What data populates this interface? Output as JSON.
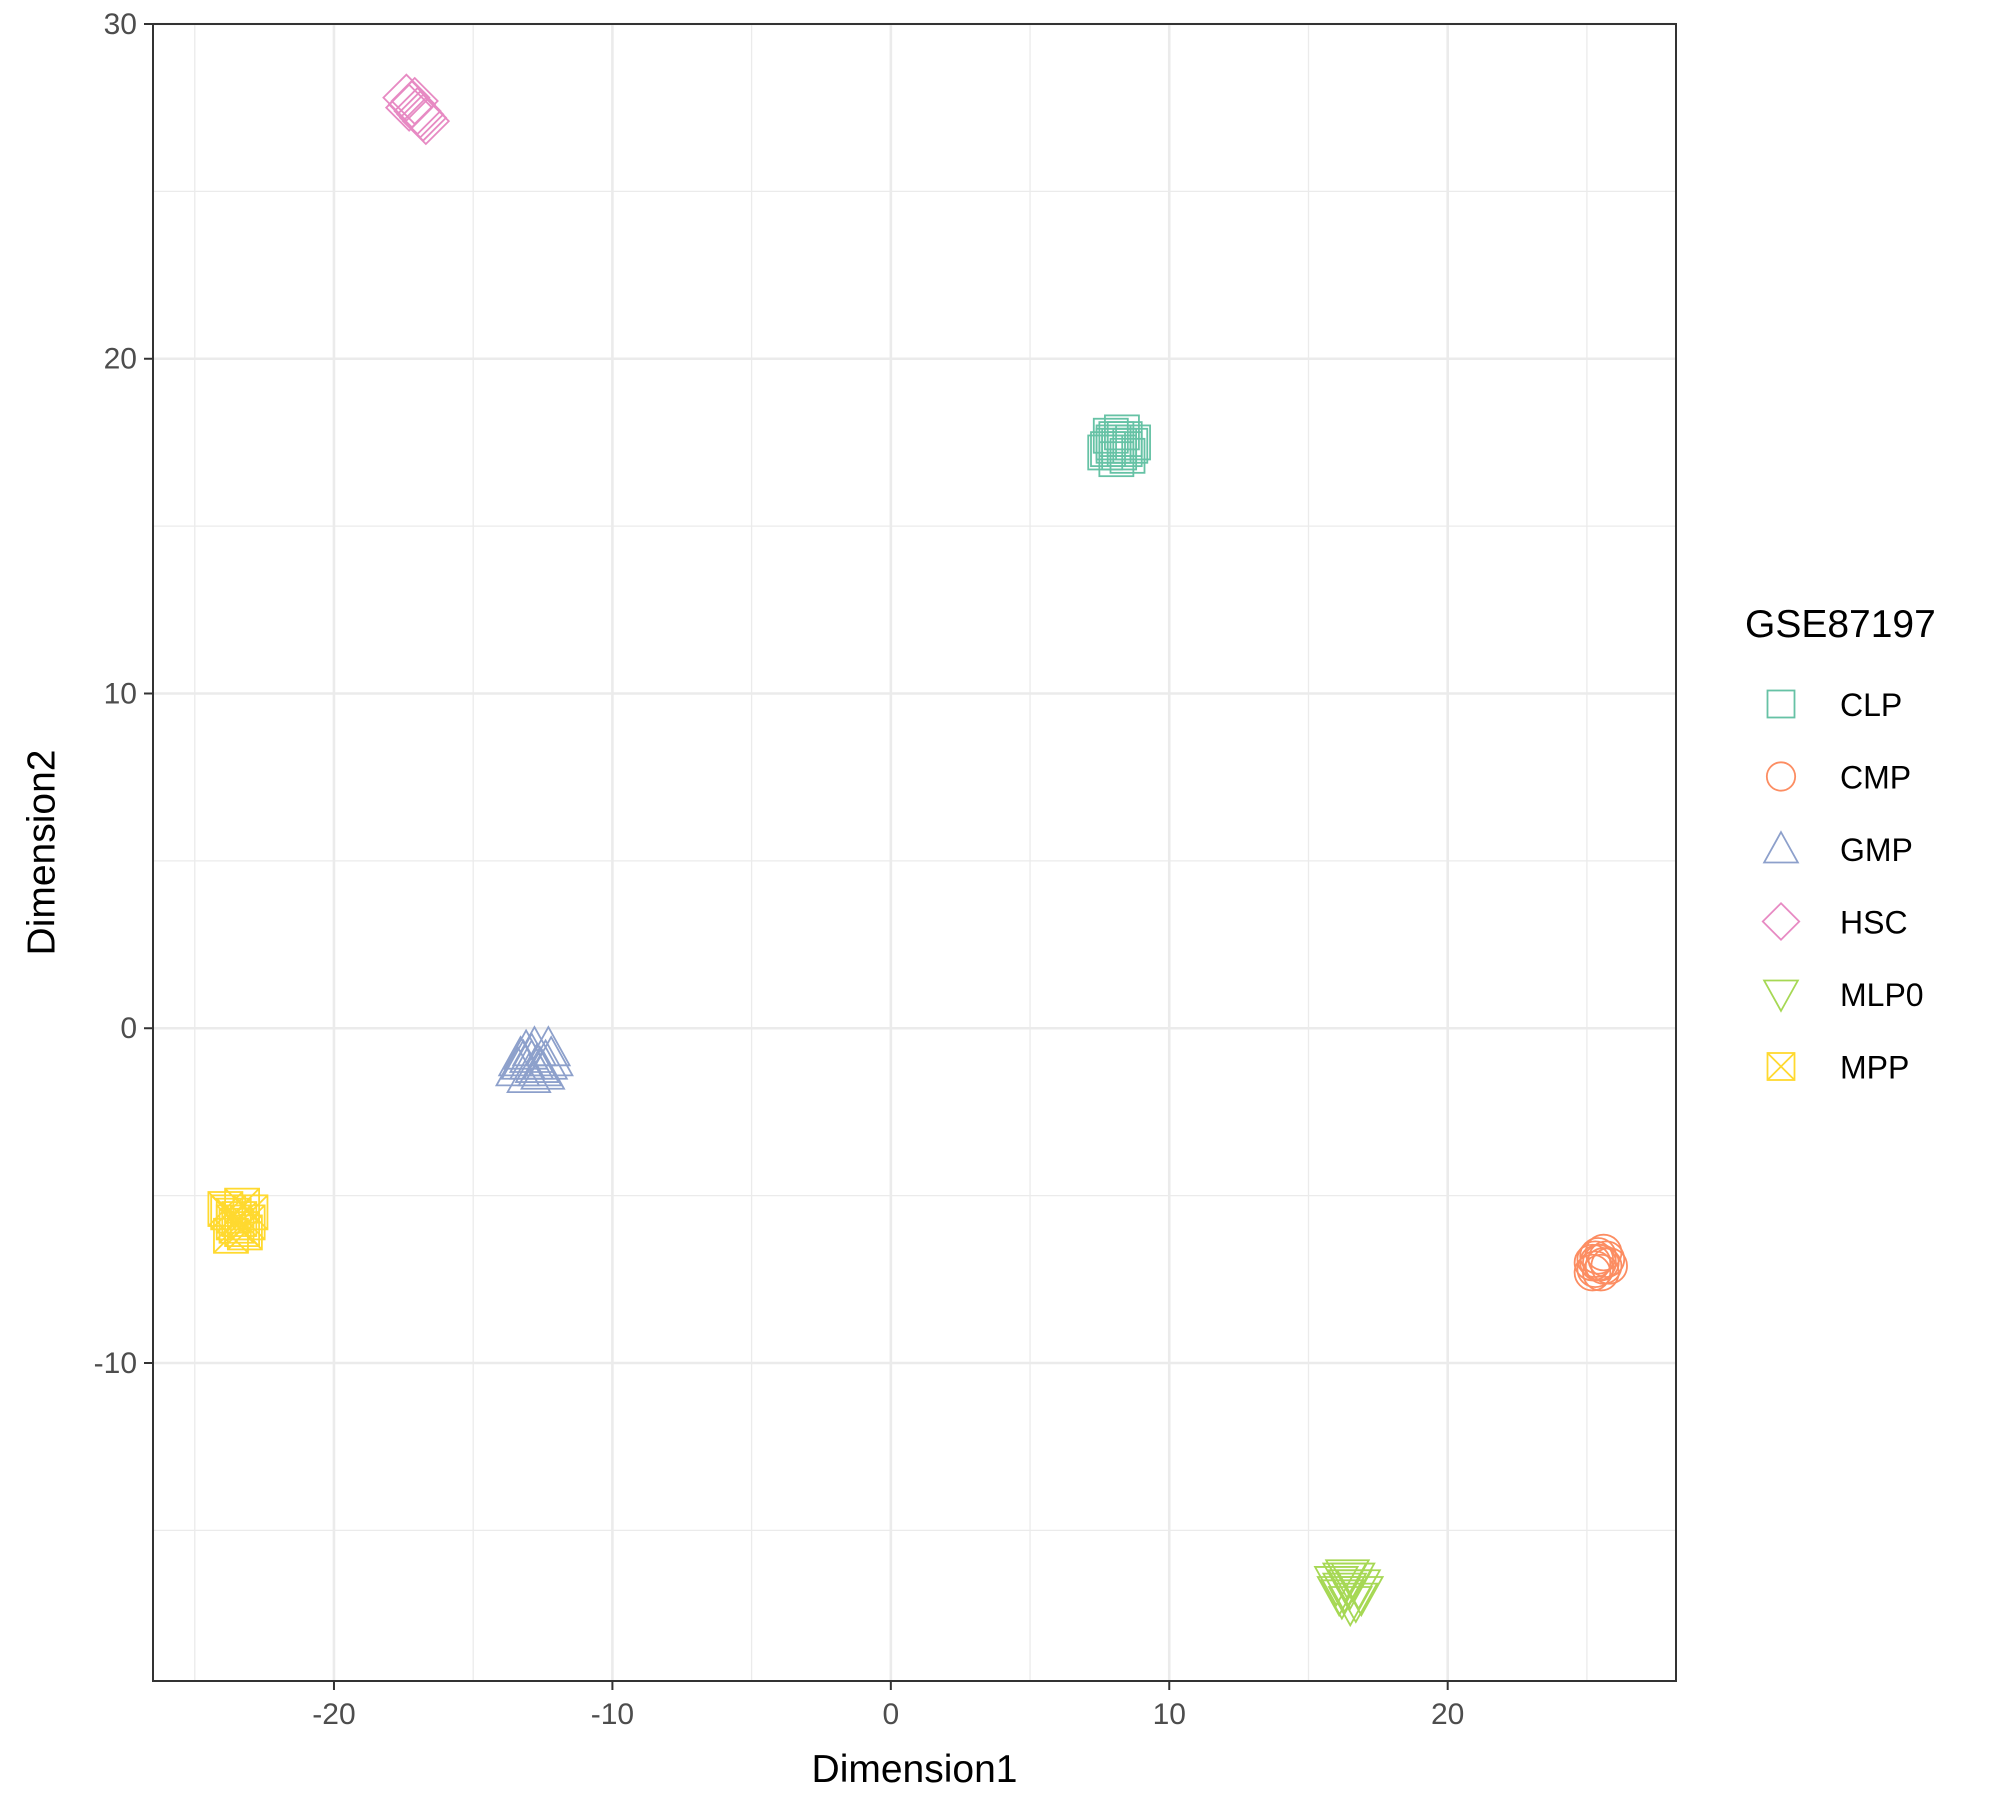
{
  "chart_data": {
    "type": "scatter",
    "xlabel": "Dimension1",
    "ylabel": "Dimension2",
    "xlim": [
      -26.5,
      28.2
    ],
    "ylim": [
      -19.5,
      30
    ],
    "x_ticks": [
      -20,
      -10,
      0,
      10,
      20
    ],
    "y_ticks": [
      -10,
      0,
      10,
      20,
      30
    ],
    "x_tick_labels": [
      "-20",
      "-10",
      "0",
      "10",
      "20"
    ],
    "y_tick_labels": [
      "-10",
      "0",
      "10",
      "20",
      "30"
    ],
    "grid": true,
    "legend_position": "right",
    "legend_title": "GSE87197",
    "series": [
      {
        "name": "CLP",
        "shape": "square",
        "color": "#66C2A5",
        "points": [
          [
            7.8,
            17.3
          ],
          [
            8.0,
            17.5
          ],
          [
            8.2,
            17.2
          ],
          [
            8.4,
            17.6
          ],
          [
            8.6,
            17.4
          ],
          [
            8.1,
            17.0
          ],
          [
            7.9,
            17.7
          ],
          [
            8.3,
            17.8
          ],
          [
            8.5,
            17.1
          ],
          [
            8.0,
            17.4
          ],
          [
            8.7,
            17.5
          ],
          [
            7.7,
            17.2
          ],
          [
            8.2,
            17.4
          ],
          [
            8.4,
            17.3
          ],
          [
            8.1,
            17.6
          ]
        ]
      },
      {
        "name": "CMP",
        "shape": "circle",
        "color": "#FC8D62",
        "points": [
          [
            25.2,
            -7.0
          ],
          [
            25.4,
            -6.8
          ],
          [
            25.6,
            -7.1
          ],
          [
            25.5,
            -7.3
          ],
          [
            25.3,
            -7.2
          ],
          [
            25.7,
            -6.9
          ],
          [
            25.4,
            -7.0
          ],
          [
            25.6,
            -6.7
          ],
          [
            25.2,
            -7.3
          ],
          [
            25.5,
            -7.0
          ],
          [
            25.8,
            -7.1
          ],
          [
            25.3,
            -6.9
          ]
        ]
      },
      {
        "name": "GMP",
        "shape": "triangle-up",
        "color": "#8DA0CB",
        "points": [
          [
            -13.2,
            -1.0
          ],
          [
            -12.9,
            -0.8
          ],
          [
            -12.6,
            -1.2
          ],
          [
            -12.8,
            -0.6
          ],
          [
            -13.0,
            -1.4
          ],
          [
            -12.4,
            -1.0
          ],
          [
            -13.4,
            -1.2
          ],
          [
            -12.7,
            -1.1
          ],
          [
            -12.2,
            -0.9
          ],
          [
            -13.1,
            -0.7
          ],
          [
            -12.5,
            -1.3
          ],
          [
            -12.9,
            -1.0
          ],
          [
            -12.3,
            -0.6
          ],
          [
            -13.3,
            -0.9
          ]
        ]
      },
      {
        "name": "HSC",
        "shape": "diamond",
        "color": "#E78AC3",
        "points": [
          [
            -17.4,
            27.8
          ],
          [
            -17.2,
            27.6
          ],
          [
            -17.0,
            27.4
          ],
          [
            -16.8,
            27.2
          ],
          [
            -17.1,
            27.7
          ],
          [
            -16.9,
            27.3
          ],
          [
            -17.3,
            27.5
          ],
          [
            -16.7,
            27.1
          ]
        ]
      },
      {
        "name": "MLP0",
        "shape": "triangle-down",
        "color": "#A6D854",
        "points": [
          [
            16.0,
            -16.6
          ],
          [
            16.3,
            -16.8
          ],
          [
            16.6,
            -16.5
          ],
          [
            16.8,
            -16.7
          ],
          [
            16.2,
            -17.0
          ],
          [
            16.5,
            -17.2
          ],
          [
            16.4,
            -16.4
          ],
          [
            16.9,
            -16.9
          ],
          [
            16.1,
            -16.9
          ],
          [
            16.7,
            -17.1
          ],
          [
            16.5,
            -16.7
          ],
          [
            16.3,
            -16.5
          ]
        ]
      },
      {
        "name": "MPP",
        "shape": "square-cross",
        "color": "#FFD92F",
        "points": [
          [
            -23.9,
            -5.4
          ],
          [
            -23.6,
            -5.6
          ],
          [
            -23.3,
            -5.3
          ],
          [
            -23.5,
            -5.9
          ],
          [
            -23.2,
            -6.1
          ],
          [
            -23.7,
            -6.2
          ],
          [
            -23.4,
            -5.7
          ],
          [
            -23.0,
            -5.5
          ],
          [
            -23.6,
            -5.8
          ],
          [
            -23.3,
            -6.0
          ],
          [
            -23.1,
            -5.8
          ],
          [
            -23.8,
            -5.5
          ]
        ]
      }
    ]
  }
}
